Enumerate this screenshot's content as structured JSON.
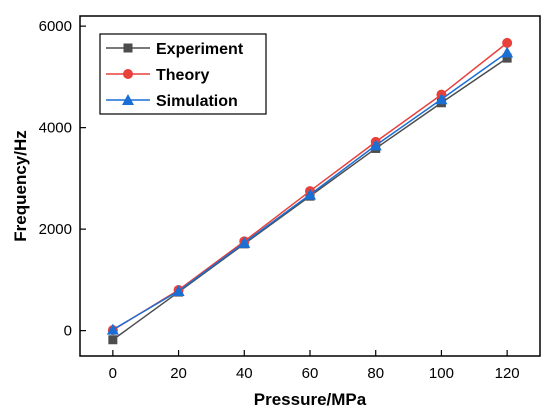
{
  "chart_data": {
    "type": "line",
    "title": "",
    "xlabel": "Pressure/MPa",
    "ylabel": "Frequency/Hz",
    "x": [
      0,
      20,
      40,
      60,
      80,
      100,
      120
    ],
    "xlim": [
      -10,
      130
    ],
    "ylim": [
      -500,
      6200
    ],
    "xticks": [
      0,
      20,
      40,
      60,
      80,
      100,
      120
    ],
    "yticks": [
      0,
      2000,
      4000,
      6000
    ],
    "grid": false,
    "legend_position": "top-left",
    "series": [
      {
        "name": "Experiment",
        "marker": "square",
        "color": "#4d4d4d",
        "values": [
          -180,
          760,
          1710,
          2650,
          3590,
          4490,
          5370
        ]
      },
      {
        "name": "Theory",
        "marker": "circle",
        "color": "#e8413c",
        "values": [
          10,
          800,
          1760,
          2750,
          3720,
          4650,
          5670
        ]
      },
      {
        "name": "Simulation",
        "marker": "triangle",
        "color": "#1a6fd4",
        "values": [
          20,
          780,
          1730,
          2680,
          3650,
          4560,
          5480
        ]
      }
    ]
  }
}
